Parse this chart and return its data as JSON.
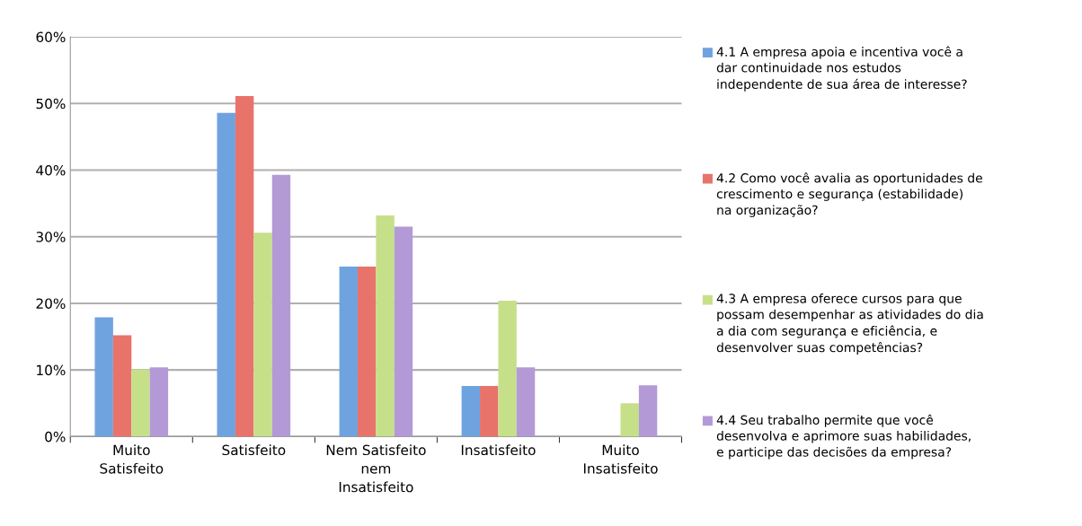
{
  "chart_data": {
    "type": "bar",
    "categories": [
      "Muito Satisfeito",
      "Satisfeito",
      "Nem Satisfeito nem Insatisfeito",
      "Insatisfeito",
      "Muito Insatisfeito"
    ],
    "series": [
      {
        "name": "4.1 A empresa apoia e incentiva você a dar continuidade nos estudos independente de sua área de interesse?",
        "color": "#6fa3e0",
        "values": [
          17.9,
          48.6,
          25.5,
          7.6,
          0
        ]
      },
      {
        "name": "4.2 Como você avalia as oportunidades de crescimento e segurança (estabilidade) na organização?",
        "color": "#e8736b",
        "values": [
          15.2,
          51.1,
          25.5,
          7.6,
          0
        ]
      },
      {
        "name": "4.3 A empresa oferece cursos para que possam desempenhar as atividades do dia a dia com segurança e eficiência, e desenvolver suas competências?",
        "color": "#c6e08a",
        "values": [
          10.1,
          30.6,
          33.2,
          20.4,
          5.0
        ]
      },
      {
        "name": "4.4 Seu trabalho permite que você desenvolva e aprimore suas habilidades, e participe das decisões da empresa?",
        "color": "#b39ad6",
        "values": [
          10.4,
          39.3,
          31.5,
          10.4,
          7.7
        ]
      }
    ],
    "ylim": [
      0,
      60
    ],
    "yticks": [
      {
        "value": 0,
        "label": "0%"
      },
      {
        "value": 10,
        "label": "10%"
      },
      {
        "value": 20,
        "label": "20%"
      },
      {
        "value": 30,
        "label": "30%"
      },
      {
        "value": 40,
        "label": "40%"
      },
      {
        "value": 50,
        "label": "50%"
      },
      {
        "value": 60,
        "label": "60%"
      }
    ],
    "grid": "y",
    "legend": "right"
  }
}
